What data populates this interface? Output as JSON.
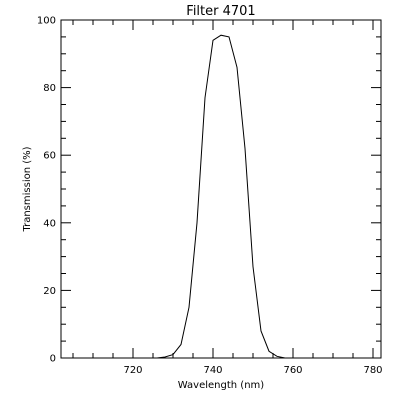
{
  "chart_data": {
    "type": "line",
    "title": "Filter 4701",
    "xlabel": "Wavelength (nm)",
    "ylabel": "Transmission (%)",
    "xlim": [
      702,
      782
    ],
    "ylim": [
      0,
      100
    ],
    "grid": false,
    "legend": "none",
    "x_ticks": [
      720,
      740,
      760,
      780
    ],
    "y_ticks": [
      0,
      20,
      40,
      60,
      80,
      100
    ],
    "series": [
      {
        "x": [
          724,
          726,
          728,
          730,
          732,
          734,
          736,
          738,
          740,
          742,
          744,
          746,
          748,
          750,
          752,
          754,
          756,
          758,
          760
        ],
        "y": [
          0,
          0,
          0.3,
          1,
          4,
          15,
          40,
          77,
          94,
          95.5,
          95,
          86,
          62,
          27,
          8,
          2,
          0.5,
          0,
          0
        ]
      }
    ]
  }
}
